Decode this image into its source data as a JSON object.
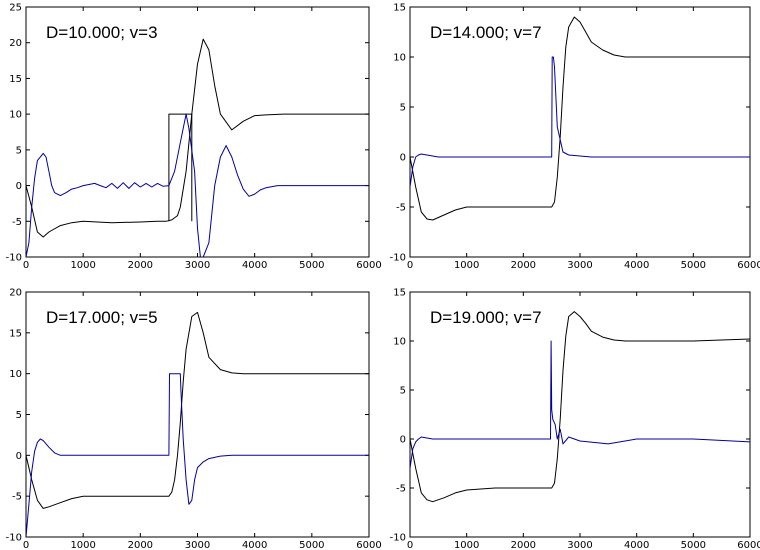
{
  "chart_data": [
    {
      "type": "line",
      "title": "D=10.000; v=3",
      "xlim": [
        0,
        6000
      ],
      "ylim": [
        -10,
        25
      ],
      "xticks": [
        0,
        1000,
        2000,
        3000,
        4000,
        5000,
        6000
      ],
      "yticks": [
        -10,
        -5,
        0,
        5,
        10,
        15,
        20,
        25
      ],
      "grid": false,
      "series": [
        {
          "color": "#000000",
          "x": [
            0,
            100,
            200,
            300,
            400,
            600,
            800,
            1000,
            1500,
            2000,
            2300,
            2450,
            2550,
            2650,
            2700,
            2800,
            2900,
            3000,
            3100,
            3200,
            3300,
            3400,
            3600,
            3800,
            4000,
            4200,
            4500,
            5000,
            6000
          ],
          "y": [
            0,
            -3,
            -6.5,
            -7.2,
            -6.5,
            -5.6,
            -5.2,
            -5,
            -5.2,
            -5.1,
            -5,
            -5,
            -4.8,
            -4.2,
            -3,
            2,
            10,
            17,
            20.5,
            19,
            14,
            10,
            7.8,
            9,
            9.8,
            9.9,
            10,
            10,
            10
          ]
        },
        {
          "color": "#000000",
          "x": [
            2500,
            2500,
            2900,
            2900
          ],
          "y": [
            -5,
            10,
            10,
            -5
          ]
        },
        {
          "color": "#0000a0",
          "x": [
            0,
            50,
            100,
            150,
            200,
            300,
            350,
            400,
            450,
            500,
            600,
            700,
            800,
            900,
            1000,
            1200,
            1300,
            1400,
            1500,
            1600,
            1700,
            1800,
            1900,
            2000,
            2100,
            2200,
            2300,
            2400,
            2500,
            2600,
            2700,
            2800,
            2850,
            2950,
            3000,
            3050,
            3100,
            3200,
            3300,
            3400,
            3500,
            3600,
            3700,
            3800,
            3900,
            4000,
            4100,
            4200,
            4400,
            4600,
            5000,
            6000
          ],
          "y": [
            -10,
            -8,
            -3,
            1,
            3.5,
            4.5,
            4,
            2,
            0,
            -1,
            -1.4,
            -1,
            -0.5,
            -0.3,
            0,
            0.3,
            0,
            -0.3,
            0.3,
            -0.4,
            0.4,
            -0.4,
            0.4,
            -0.2,
            0.3,
            -0.2,
            0.3,
            -0.1,
            0,
            2,
            6,
            10,
            8,
            2,
            -6,
            -10,
            -10,
            -8,
            0,
            4,
            5.6,
            4,
            1.5,
            -0.5,
            -1.5,
            -1.2,
            -0.6,
            -0.3,
            0,
            0,
            0,
            0
          ]
        }
      ]
    },
    {
      "type": "line",
      "title": "D=14.000; v=7",
      "xlim": [
        0,
        6000
      ],
      "ylim": [
        -10,
        15
      ],
      "xticks": [
        0,
        1000,
        2000,
        3000,
        4000,
        5000,
        6000
      ],
      "yticks": [
        -10,
        -5,
        0,
        5,
        10,
        15
      ],
      "grid": false,
      "series": [
        {
          "color": "#000000",
          "x": [
            0,
            100,
            200,
            300,
            400,
            600,
            800,
            1000,
            1500,
            2000,
            2400,
            2500,
            2550,
            2600,
            2650,
            2700,
            2750,
            2800,
            2900,
            3000,
            3100,
            3200,
            3400,
            3600,
            3800,
            4000,
            5000,
            6000
          ],
          "y": [
            0,
            -3,
            -5.5,
            -6.2,
            -6.3,
            -5.8,
            -5.3,
            -5,
            -5,
            -5,
            -5,
            -5,
            -4.5,
            -2,
            2,
            7,
            11,
            13,
            14,
            13.5,
            12.5,
            11.5,
            10.7,
            10.2,
            10,
            10,
            10,
            10
          ]
        },
        {
          "color": "#0000a0",
          "x": [
            0,
            50,
            100,
            150,
            200,
            300,
            400,
            500,
            600,
            800,
            1000,
            1500,
            2000,
            2400,
            2500,
            2510,
            2530,
            2550,
            2600,
            2700,
            2800,
            3000,
            3200,
            3500,
            6000
          ],
          "y": [
            -3,
            -1,
            0,
            0.2,
            0.3,
            0.2,
            0.1,
            0,
            0,
            0,
            0,
            0,
            0,
            0,
            0,
            10,
            10,
            9,
            3,
            0.5,
            0.2,
            0.1,
            0,
            0,
            0
          ]
        }
      ]
    },
    {
      "type": "line",
      "title": "D=17.000; v=5",
      "xlim": [
        0,
        6000
      ],
      "ylim": [
        -10,
        20
      ],
      "xticks": [
        0,
        1000,
        2000,
        3000,
        4000,
        5000,
        6000
      ],
      "yticks": [
        -10,
        -5,
        0,
        5,
        10,
        15,
        20
      ],
      "grid": false,
      "series": [
        {
          "color": "#000000",
          "x": [
            0,
            100,
            200,
            300,
            400,
            600,
            800,
            1000,
            1500,
            2000,
            2400,
            2500,
            2550,
            2600,
            2650,
            2700,
            2750,
            2800,
            2900,
            3000,
            3100,
            3200,
            3400,
            3600,
            3800,
            4000,
            5000,
            6000
          ],
          "y": [
            0,
            -3,
            -5.5,
            -6.5,
            -6.3,
            -5.8,
            -5.3,
            -5,
            -5,
            -5,
            -5,
            -5,
            -4.5,
            -3,
            0,
            4,
            9,
            13,
            17,
            17.5,
            15,
            12,
            10.5,
            10.1,
            10,
            10,
            10,
            10
          ]
        },
        {
          "color": "#0000a0",
          "x": [
            0,
            50,
            100,
            150,
            200,
            250,
            300,
            400,
            500,
            600,
            700,
            800,
            1000,
            1500,
            2000,
            2500,
            2510,
            2700,
            2710,
            2750,
            2800,
            2850,
            2900,
            2950,
            3000,
            3100,
            3200,
            3400,
            3600,
            4000,
            6000
          ],
          "y": [
            -10,
            -6,
            -2,
            0.5,
            1.6,
            2,
            1.8,
            1,
            0.3,
            0,
            0,
            0,
            0,
            0,
            0,
            0,
            10,
            10,
            8,
            2,
            -3,
            -6,
            -5.5,
            -3,
            -1.5,
            -0.8,
            -0.4,
            -0.1,
            0,
            0,
            0
          ]
        }
      ]
    },
    {
      "type": "line",
      "title": "D=19.000; v=7",
      "xlim": [
        0,
        6000
      ],
      "ylim": [
        -10,
        15
      ],
      "xticks": [
        0,
        1000,
        2000,
        3000,
        4000,
        5000,
        6000
      ],
      "yticks": [
        -10,
        -5,
        0,
        5,
        10,
        15
      ],
      "grid": false,
      "series": [
        {
          "color": "#000000",
          "x": [
            0,
            100,
            200,
            300,
            400,
            600,
            800,
            1000,
            1500,
            2000,
            2400,
            2500,
            2550,
            2600,
            2650,
            2700,
            2750,
            2800,
            2900,
            3000,
            3100,
            3200,
            3400,
            3600,
            3800,
            4000,
            5000,
            6000
          ],
          "y": [
            0,
            -3,
            -5.5,
            -6.2,
            -6.4,
            -6,
            -5.5,
            -5.2,
            -5,
            -5,
            -5,
            -5,
            -4.5,
            -2,
            2,
            7,
            10.5,
            12.5,
            13,
            12.5,
            11.8,
            11,
            10.4,
            10.1,
            10,
            10,
            10,
            10.2
          ]
        },
        {
          "color": "#0000a0",
          "x": [
            0,
            50,
            100,
            150,
            200,
            300,
            400,
            600,
            800,
            1000,
            1500,
            2000,
            2400,
            2480,
            2490,
            2500,
            2520,
            2560,
            2600,
            2650,
            2700,
            2800,
            3000,
            3500,
            4000,
            5000,
            6000
          ],
          "y": [
            -3,
            -1,
            -0.3,
            0,
            0.2,
            0.1,
            0,
            0,
            0,
            0,
            0,
            0,
            0,
            0,
            10,
            3,
            2,
            1.5,
            0,
            1,
            -0.5,
            0.2,
            -0.2,
            -0.5,
            0,
            0,
            -0.3
          ]
        }
      ]
    }
  ]
}
